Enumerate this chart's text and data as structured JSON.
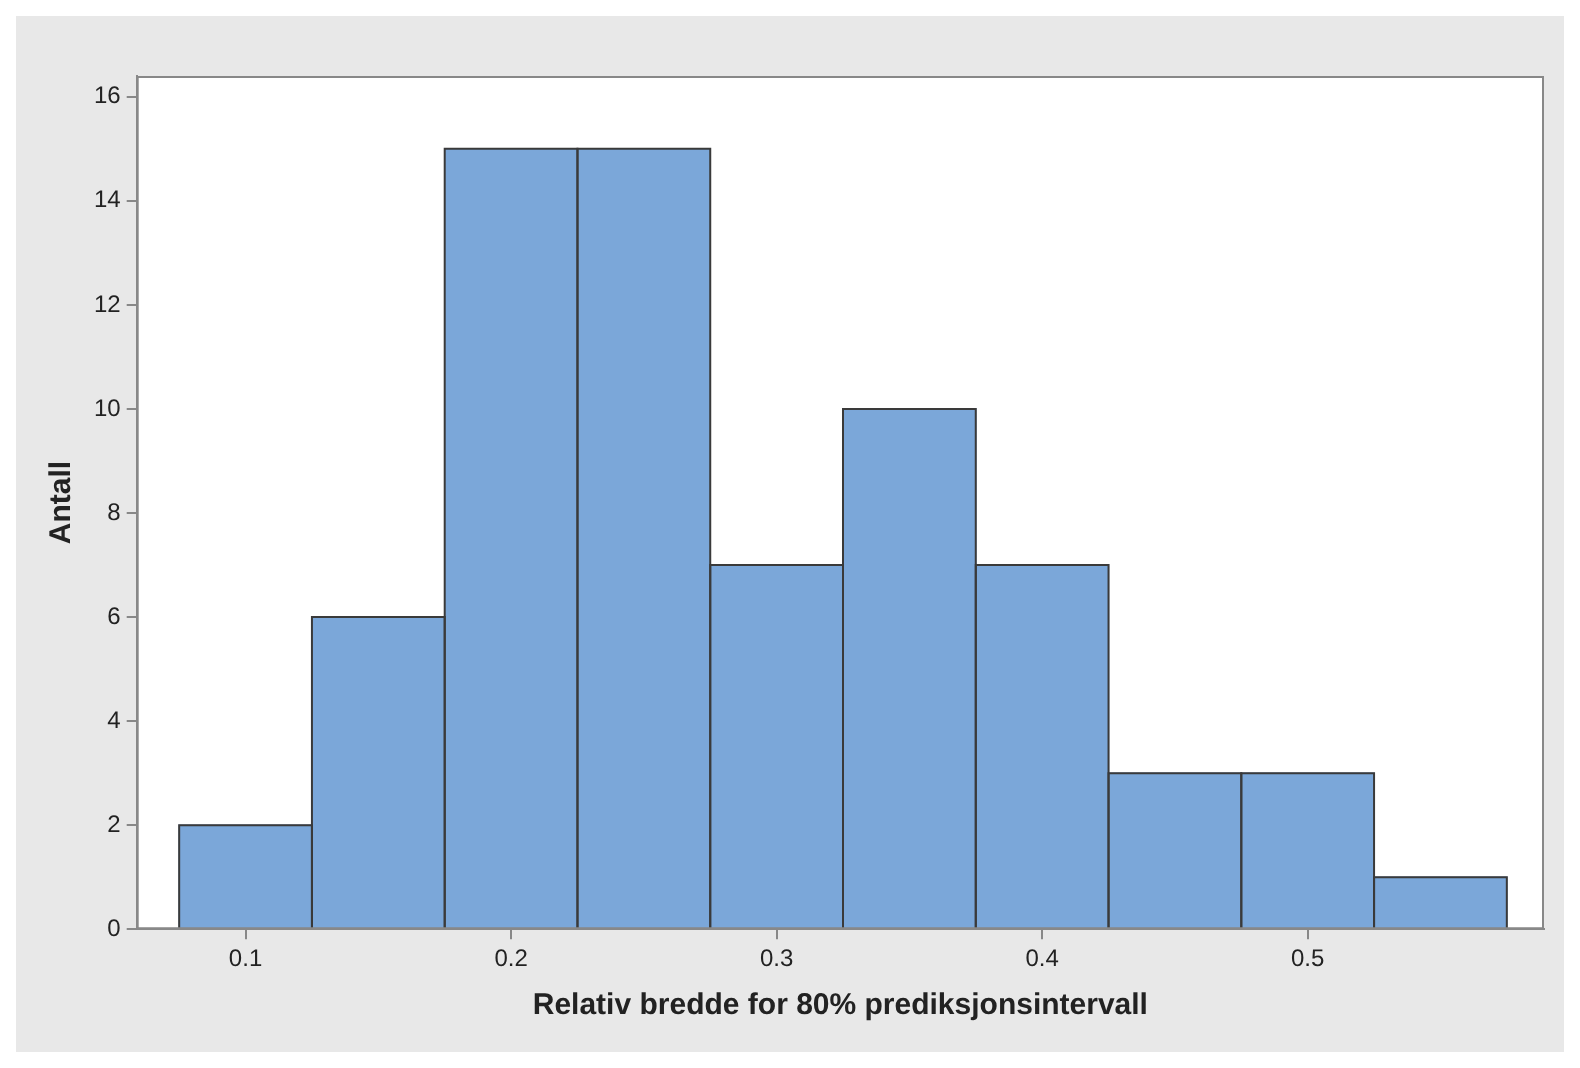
{
  "chart_data": {
    "type": "histogram",
    "xlabel": "Relativ bredde for 80% prediksjonsintervall",
    "ylabel": "Antall",
    "bins": [
      0.075,
      0.125,
      0.175,
      0.225,
      0.275,
      0.325,
      0.375,
      0.425,
      0.475,
      0.525,
      0.575
    ],
    "values": [
      2,
      6,
      15,
      15,
      7,
      10,
      7,
      3,
      3,
      1
    ],
    "color": "#7ba7d9",
    "xlim": [
      0.059,
      0.589
    ],
    "xticks": [
      0.1,
      0.2,
      0.3,
      0.4,
      0.5
    ],
    "ylim": [
      0,
      16.4
    ],
    "yticks": [
      0,
      2,
      4,
      6,
      8,
      10,
      12,
      14,
      16
    ],
    "grid": false,
    "legend": false
  }
}
